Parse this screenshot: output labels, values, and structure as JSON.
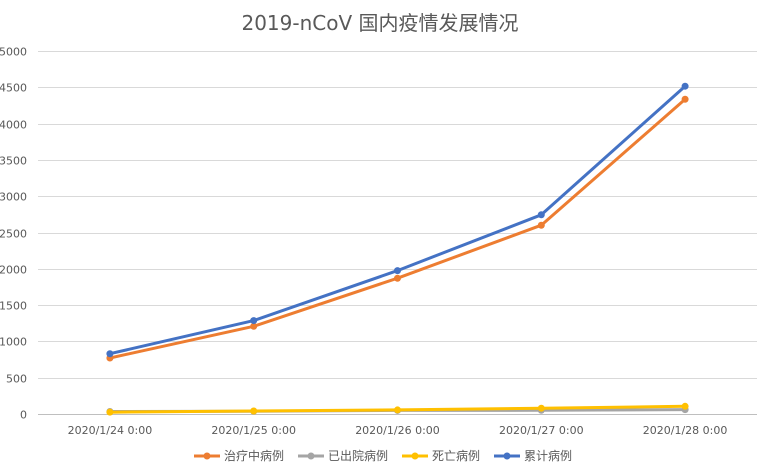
{
  "chart_data": {
    "type": "line",
    "title": "2019-nCoV 国内疫情发展情况",
    "xlabel": "",
    "ylabel": "",
    "categories": [
      "2020/1/24 0:00",
      "2020/1/25 0:00",
      "2020/1/26 0:00",
      "2020/1/27 0:00",
      "2020/1/28 0:00"
    ],
    "ylim": [
      0,
      5000
    ],
    "yticks": [
      0,
      500,
      1000,
      1500,
      2000,
      2500,
      3000,
      3500,
      4000,
      4500,
      5000
    ],
    "grid": true,
    "legend_position": "bottom",
    "series": [
      {
        "name": "治疗中病例",
        "color": "#ED7D31",
        "values": [
          771,
          1208,
          1870,
          2600,
          4335
        ]
      },
      {
        "name": "已出院病例",
        "color": "#A5A5A5",
        "values": [
          34,
          38,
          49,
          51,
          60
        ]
      },
      {
        "name": "死亡病例",
        "color": "#FFC000",
        "values": [
          25,
          41,
          56,
          80,
          106
        ]
      },
      {
        "name": "累计病例",
        "color": "#4472C4",
        "values": [
          830,
          1287,
          1975,
          2744,
          4515
        ]
      }
    ]
  }
}
